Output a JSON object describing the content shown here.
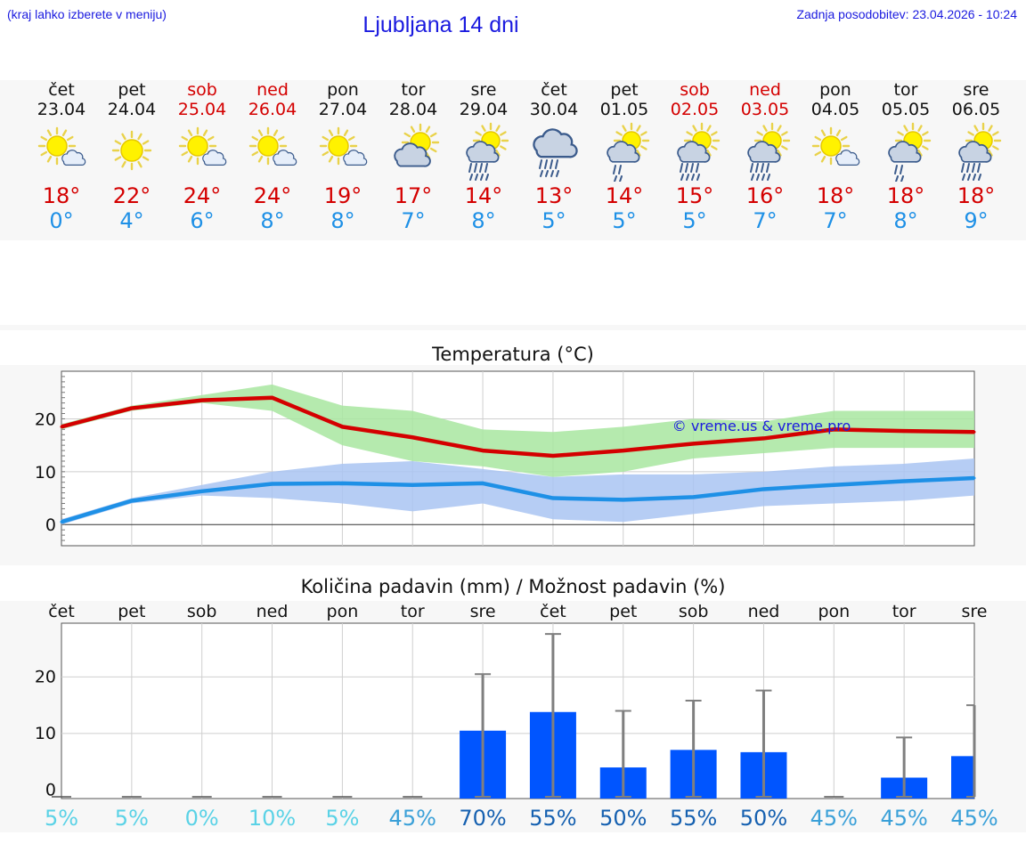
{
  "header": {
    "hint": "(kraj lahko izberete v meniju)",
    "title": "Ljubljana 14 dni",
    "updated": "Zadnja posodobitev: 23.04.2026 - 10:24"
  },
  "days": [
    {
      "weekday": "čet",
      "date": "23.04",
      "weekend": false,
      "icon": "sun-cloud-icon",
      "hi": "18°",
      "lo": "0°"
    },
    {
      "weekday": "pet",
      "date": "24.04",
      "weekend": false,
      "icon": "sun-icon",
      "hi": "22°",
      "lo": "4°"
    },
    {
      "weekday": "sob",
      "date": "25.04",
      "weekend": true,
      "icon": "sun-cloud-icon",
      "hi": "24°",
      "lo": "6°"
    },
    {
      "weekday": "ned",
      "date": "26.04",
      "weekend": true,
      "icon": "sun-cloud-icon",
      "hi": "24°",
      "lo": "8°"
    },
    {
      "weekday": "pon",
      "date": "27.04",
      "weekend": false,
      "icon": "sun-cloud-icon",
      "hi": "19°",
      "lo": "8°"
    },
    {
      "weekday": "tor",
      "date": "28.04",
      "weekend": false,
      "icon": "partly-cloudy-icon",
      "hi": "17°",
      "lo": "7°"
    },
    {
      "weekday": "sre",
      "date": "29.04",
      "weekend": false,
      "icon": "sun-cloud-rain-icon",
      "hi": "14°",
      "lo": "8°"
    },
    {
      "weekday": "čet",
      "date": "30.04",
      "weekend": false,
      "icon": "cloud-rain-icon",
      "hi": "13°",
      "lo": "5°"
    },
    {
      "weekday": "pet",
      "date": "01.05",
      "weekend": false,
      "icon": "sun-cloud-light-rain-icon",
      "hi": "14°",
      "lo": "5°"
    },
    {
      "weekday": "sob",
      "date": "02.05",
      "weekend": true,
      "icon": "sun-cloud-rain-icon",
      "hi": "15°",
      "lo": "5°"
    },
    {
      "weekday": "ned",
      "date": "03.05",
      "weekend": true,
      "icon": "sun-cloud-rain-icon",
      "hi": "16°",
      "lo": "7°"
    },
    {
      "weekday": "pon",
      "date": "04.05",
      "weekend": false,
      "icon": "sun-cloud-icon",
      "hi": "18°",
      "lo": "7°"
    },
    {
      "weekday": "tor",
      "date": "05.05",
      "weekend": false,
      "icon": "sun-cloud-light-rain-icon",
      "hi": "18°",
      "lo": "8°"
    },
    {
      "weekday": "sre",
      "date": "06.05",
      "weekend": false,
      "icon": "sun-cloud-rain-icon",
      "hi": "18°",
      "lo": "9°"
    }
  ],
  "colors": {
    "weekend": "#d40000",
    "hi": "#d40000",
    "lo": "#1e90e6",
    "hi_band": "#a8e6a0",
    "lo_band": "#a9c4f2",
    "bar": "#0055ff",
    "title": "#1a1adf"
  },
  "chart_data": [
    {
      "type": "line",
      "title": "Temperatura (°C)",
      "watermark": "© vreme.us & vreme.pro",
      "ylim": [
        -4,
        29
      ],
      "yticks": [
        0,
        10,
        20
      ],
      "grid": true,
      "series": [
        {
          "values": [
            18.5,
            22,
            23.5,
            24,
            18.5,
            16.5,
            14,
            13,
            14,
            15.3,
            16.3,
            18,
            17.7,
            17.5
          ],
          "band_low": [
            18,
            21.5,
            23,
            21.5,
            15,
            12,
            11,
            9,
            10,
            12.5,
            13.5,
            14.5,
            14.5,
            14.5
          ],
          "band_high": [
            19,
            22.5,
            24.5,
            26.5,
            22.5,
            21.5,
            18,
            17.5,
            18.5,
            20,
            19.5,
            21.5,
            21.5,
            21.5
          ]
        },
        {
          "values": [
            0.5,
            4.5,
            6.3,
            7.7,
            7.8,
            7.5,
            7.8,
            5,
            4.7,
            5.2,
            6.7,
            7.5,
            8.2,
            8.8
          ],
          "band_low": [
            0,
            4,
            5.5,
            5,
            4,
            2.5,
            4,
            1,
            0.5,
            2,
            3.5,
            4,
            4.5,
            5.5
          ],
          "band_high": [
            1,
            5,
            7.5,
            10,
            11.5,
            12,
            10.5,
            9,
            9.5,
            9.5,
            10,
            11,
            11.5,
            12.5
          ]
        }
      ]
    },
    {
      "type": "bar",
      "title": "Količina padavin (mm) / Možnost padavin (%)",
      "categories": [
        "čet",
        "pet",
        "sob",
        "ned",
        "pon",
        "tor",
        "sre",
        "čet",
        "pet",
        "sob",
        "ned",
        "pon",
        "tor",
        "sre"
      ],
      "ylim": [
        -1.5,
        29.5
      ],
      "yticks": [
        0,
        10,
        20
      ],
      "grid": true,
      "values": [
        0,
        0,
        0,
        0,
        0,
        0,
        10.5,
        13.8,
        4,
        7.1,
        6.7,
        0,
        2.2,
        6
      ],
      "error_max": [
        0,
        0,
        0,
        0,
        0,
        0,
        20.5,
        27.6,
        14,
        15.8,
        17.6,
        0,
        9.3,
        15
      ],
      "probability": [
        "5%",
        "5%",
        "0%",
        "10%",
        "5%",
        "45%",
        "70%",
        "55%",
        "50%",
        "55%",
        "50%",
        "45%",
        "45%",
        "45%"
      ],
      "probability_colors": [
        "#5ad2e6",
        "#5ad2e6",
        "#5ad2e6",
        "#5ad2e6",
        "#5ad2e6",
        "#3aa0d8",
        "#1560b0",
        "#1560b0",
        "#1560b0",
        "#1560b0",
        "#1560b0",
        "#3aa0d8",
        "#3aa0d8",
        "#3aa0d8"
      ]
    }
  ]
}
